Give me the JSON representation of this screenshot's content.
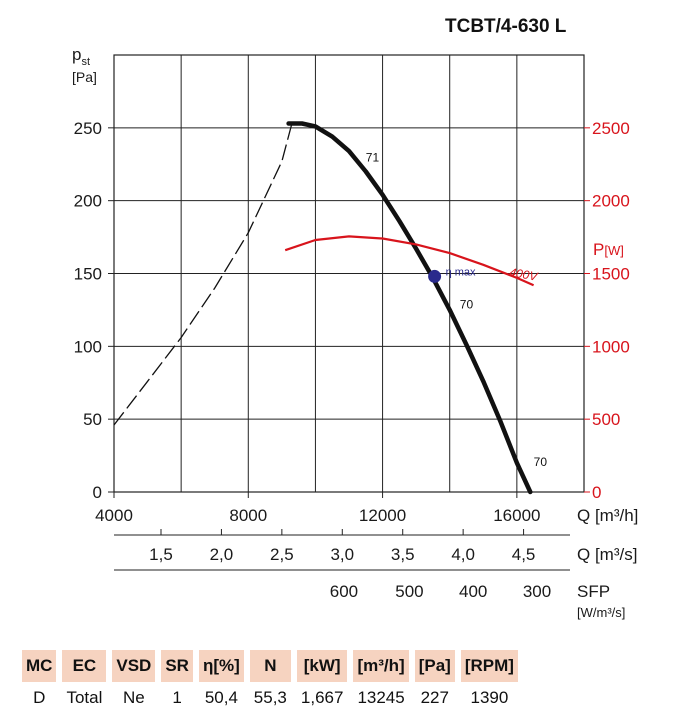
{
  "title": "TCBT/4-630 L",
  "chart_data": {
    "type": "line",
    "y_left": {
      "label_main": "p",
      "label_sub": "st",
      "unit": "[Pa]",
      "range": [
        0,
        300
      ],
      "ticks": [
        0,
        50,
        100,
        150,
        200,
        250
      ]
    },
    "y_right": {
      "label_main": "P",
      "unit": "[W]",
      "range": [
        0,
        3000
      ],
      "ticks": [
        0,
        500,
        1000,
        1500,
        2000,
        2500
      ]
    },
    "x_axes": [
      {
        "label": "Q [m³/h]",
        "ticks": [
          "4000",
          "8000",
          "12000",
          "16000"
        ],
        "tick_values": [
          4000,
          8000,
          12000,
          16000
        ]
      },
      {
        "label": "Q [m³/s]",
        "ticks": [
          "1,5",
          "2,0",
          "2,5",
          "3,0",
          "3,5",
          "4,0",
          "4,5"
        ],
        "tick_values": [
          1.5,
          2.0,
          2.5,
          3.0,
          3.5,
          4.0,
          4.5
        ]
      },
      {
        "label": "SFP",
        "unit": "[W/m³/s]",
        "ticks": [
          "600",
          "500",
          "400",
          "300"
        ],
        "tick_positions_m3h": [
          10850,
          12800,
          14700,
          16600
        ]
      }
    ],
    "x_range_m3h": [
      4000,
      18000
    ],
    "series": [
      {
        "name": "pressure-curve",
        "axis": "left",
        "x": [
          9200,
          9600,
          10000,
          10500,
          11000,
          11500,
          12000,
          12500,
          13000,
          13500,
          14000,
          14500,
          15000,
          15500,
          16000,
          16400
        ],
        "y": [
          253,
          253,
          251,
          244,
          234,
          220,
          204,
          186,
          167,
          147,
          125,
          101,
          76,
          49,
          20,
          0
        ]
      },
      {
        "name": "stall-region",
        "axis": "left",
        "style": "dashed",
        "x": [
          4000,
          5000,
          6000,
          7000,
          8000,
          9000,
          9300
        ],
        "y": [
          46,
          76,
          106,
          140,
          178,
          227,
          253
        ]
      },
      {
        "name": "power-400V",
        "axis": "right",
        "label": "400V",
        "x": [
          9100,
          10000,
          11000,
          12000,
          13000,
          14000,
          15000,
          16000,
          16500
        ],
        "y": [
          1660,
          1730,
          1755,
          1740,
          1700,
          1640,
          1560,
          1470,
          1420
        ]
      }
    ],
    "annotations": [
      {
        "text": "71",
        "x": 11500,
        "y": 227
      },
      {
        "text": "70",
        "x": 14300,
        "y": 126
      },
      {
        "text": "70",
        "x": 16500,
        "y": 18
      },
      {
        "text": "η max",
        "x": 13550,
        "y": 148,
        "marker": true
      }
    ]
  },
  "table": {
    "headers": [
      "MC",
      "EC",
      "VSD",
      "SR",
      "η[%]",
      "N",
      "[kW]",
      "[m³/h]",
      "[Pa]",
      "[RPM]"
    ],
    "values": [
      "D",
      "Total",
      "Ne",
      "1",
      "50,4",
      "55,3",
      "1,667",
      "13245",
      "227",
      "1390"
    ]
  },
  "colors": {
    "accent": "#d8141c",
    "marker": "#2a2a8c",
    "header_bg": "#f6d3c0"
  }
}
